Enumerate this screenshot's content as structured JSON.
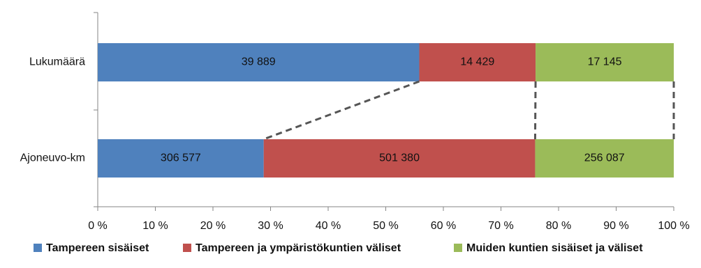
{
  "chart_data": {
    "type": "bar",
    "orientation": "horizontal",
    "stacked": "percent",
    "connectors": true,
    "categories": [
      "Lukumäärä",
      "Ajoneuvo-km"
    ],
    "series": [
      {
        "name": "Tampereen sisäiset",
        "color": "#4f81bd",
        "values": [
          39889,
          306577
        ],
        "value_labels": [
          "39 889",
          "306 577"
        ]
      },
      {
        "name": "Tampereen ja ympäristökuntien väliset",
        "color": "#c0504d",
        "values": [
          14429,
          501380
        ],
        "value_labels": [
          "14 429",
          "501 380"
        ]
      },
      {
        "name": "Muiden kuntien sisäiset ja väliset",
        "color": "#9bbb59",
        "values": [
          17145,
          256087
        ],
        "value_labels": [
          "17 145",
          "256 087"
        ]
      }
    ],
    "xlim": [
      0,
      100
    ],
    "xticks": [
      {
        "value": 0,
        "label": "0 %"
      },
      {
        "value": 10,
        "label": "10 %"
      },
      {
        "value": 20,
        "label": "20 %"
      },
      {
        "value": 30,
        "label": "30 %"
      },
      {
        "value": 40,
        "label": "40 %"
      },
      {
        "value": 50,
        "label": "50 %"
      },
      {
        "value": 60,
        "label": "60 %"
      },
      {
        "value": 70,
        "label": "70 %"
      },
      {
        "value": 80,
        "label": "80 %"
      },
      {
        "value": 90,
        "label": "90 %"
      },
      {
        "value": 100,
        "label": "100 %"
      }
    ],
    "legend": "bottom"
  }
}
